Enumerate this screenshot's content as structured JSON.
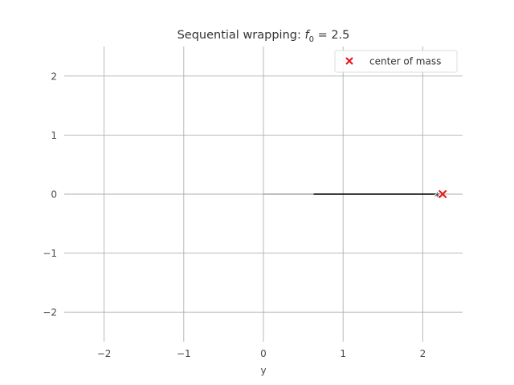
{
  "chart_data": {
    "type": "line",
    "title": "Sequential wrapping: f_0 = 2.5",
    "title_display": {
      "prefix": "Sequential wrapping: ",
      "var": "f",
      "sub": "0",
      "suffix": " = 2.5"
    },
    "xlabel": "y",
    "ylabel": "",
    "xlim": [
      -2.5,
      2.5
    ],
    "ylim": [
      -2.5,
      2.5
    ],
    "x_ticks": [
      -2,
      -1,
      0,
      1,
      2
    ],
    "y_ticks": [
      -2,
      -1,
      0,
      1,
      2
    ],
    "x_tick_labels": [
      "−2",
      "−1",
      "0",
      "1",
      "2"
    ],
    "y_tick_labels": [
      "−2",
      "−1",
      "0",
      "1",
      "2"
    ],
    "grid": true,
    "legend_position": "top-right",
    "series": [
      {
        "style": "line",
        "color": "#000000",
        "x": [
          0.0,
          0.63,
          2.15
        ],
        "y": [
          0.0,
          0.0,
          0.0
        ]
      },
      {
        "name": "center of mass",
        "style": "x-marker",
        "color": "#e8191e",
        "x": [
          2.25
        ],
        "y": [
          0.0
        ]
      }
    ],
    "annotations": [
      {
        "text": "*",
        "x": 2.15,
        "y": 0.0
      }
    ]
  }
}
